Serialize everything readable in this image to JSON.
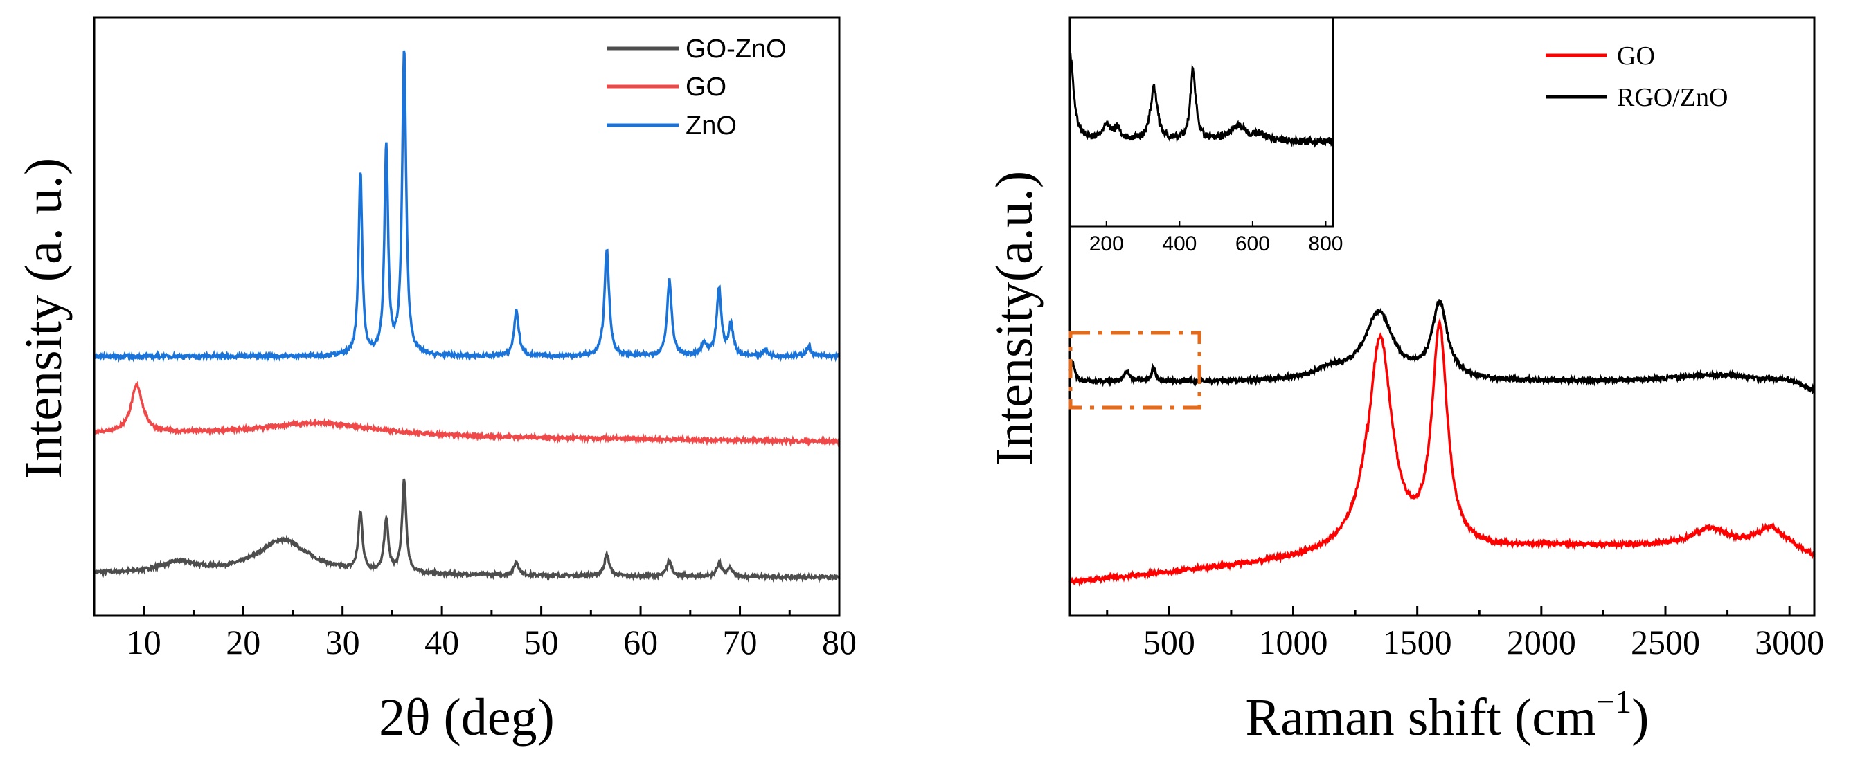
{
  "chart_data": [
    {
      "type": "line",
      "title": "",
      "xlabel": "2θ (deg)",
      "ylabel": "Intensity (a. u.)",
      "xlim": [
        5,
        80
      ],
      "xticks": [
        "10",
        "20",
        "30",
        "40",
        "50",
        "60",
        "70",
        "80"
      ],
      "yticks": [],
      "legend": "top-right",
      "series": [
        {
          "name": "GO-ZnO",
          "color": "#4d4d4d",
          "offset": 0.0,
          "base": 0.05,
          "peaks": [
            [
              13.5,
              0.04,
              2.2
            ],
            [
              24.0,
              0.13,
              3.2
            ],
            [
              31.8,
              0.22,
              0.25
            ],
            [
              34.4,
              0.2,
              0.25
            ],
            [
              36.2,
              0.35,
              0.25
            ],
            [
              47.5,
              0.05,
              0.3
            ],
            [
              56.6,
              0.08,
              0.3
            ],
            [
              62.9,
              0.06,
              0.3
            ],
            [
              67.9,
              0.05,
              0.3
            ],
            [
              69.0,
              0.03,
              0.3
            ]
          ]
        },
        {
          "name": "GO",
          "color": "#f04848",
          "offset": 0.32,
          "base": 0.1,
          "peaks": [
            [
              9.3,
              0.18,
              0.7
            ],
            [
              27.5,
              0.05,
              7.0
            ]
          ]
        },
        {
          "name": "ZnO",
          "color": "#1a73d9",
          "offset": 0.45,
          "base": 0.0,
          "peaks": [
            [
              31.8,
              0.6,
              0.22
            ],
            [
              34.4,
              0.68,
              0.22
            ],
            [
              36.2,
              1.0,
              0.24
            ],
            [
              47.5,
              0.15,
              0.28
            ],
            [
              56.6,
              0.35,
              0.28
            ],
            [
              62.9,
              0.25,
              0.28
            ],
            [
              66.4,
              0.04,
              0.3
            ],
            [
              67.9,
              0.22,
              0.28
            ],
            [
              69.1,
              0.1,
              0.28
            ],
            [
              72.5,
              0.02,
              0.3
            ],
            [
              76.9,
              0.03,
              0.3
            ]
          ]
        }
      ]
    },
    {
      "type": "line",
      "title": "",
      "xlabel": "Raman shift (cm",
      "xlabel_sup": "−1",
      "xlabel_end": ")",
      "ylabel": "Intensity(a.u.)",
      "xlim": [
        100,
        3100
      ],
      "xticks": [
        "500",
        "1000",
        "1500",
        "2000",
        "2500",
        "3000"
      ],
      "yticks": [],
      "legend": "top-right",
      "series": [
        {
          "name": "GO",
          "color": "#ff0000",
          "offset": 0.0,
          "base": 0.0,
          "peaks": [
            [
              1350,
              0.62,
              60
            ],
            [
              1590,
              0.62,
              38
            ],
            [
              2680,
              0.05,
              90
            ],
            [
              2920,
              0.05,
              60
            ]
          ]
        },
        {
          "name": "RGO/ZnO",
          "color": "#000000",
          "offset": 0.62,
          "base": 0.0,
          "peaks": [
            [
              110,
              0.06,
              10
            ],
            [
              330,
              0.03,
              14
            ],
            [
              437,
              0.04,
              10
            ],
            [
              1150,
              0.03,
              80
            ],
            [
              1345,
              0.2,
              70
            ],
            [
              1590,
              0.22,
              38
            ],
            [
              2700,
              0.02,
              200
            ]
          ]
        }
      ],
      "inset": {
        "xlim": [
          100,
          820
        ],
        "xticks": [
          "200",
          "400",
          "600",
          "800"
        ],
        "series": {
          "name": "RGO/ZnO",
          "color": "#000000",
          "peaks": [
            [
              100,
              0.75,
              12
            ],
            [
              200,
              0.12,
              14
            ],
            [
              230,
              0.1,
              12
            ],
            [
              330,
              0.45,
              12
            ],
            [
              437,
              0.6,
              9
            ],
            [
              560,
              0.12,
              30
            ],
            [
              620,
              0.05,
              20
            ]
          ]
        },
        "highlight_box_color": "#e86a17"
      }
    }
  ]
}
